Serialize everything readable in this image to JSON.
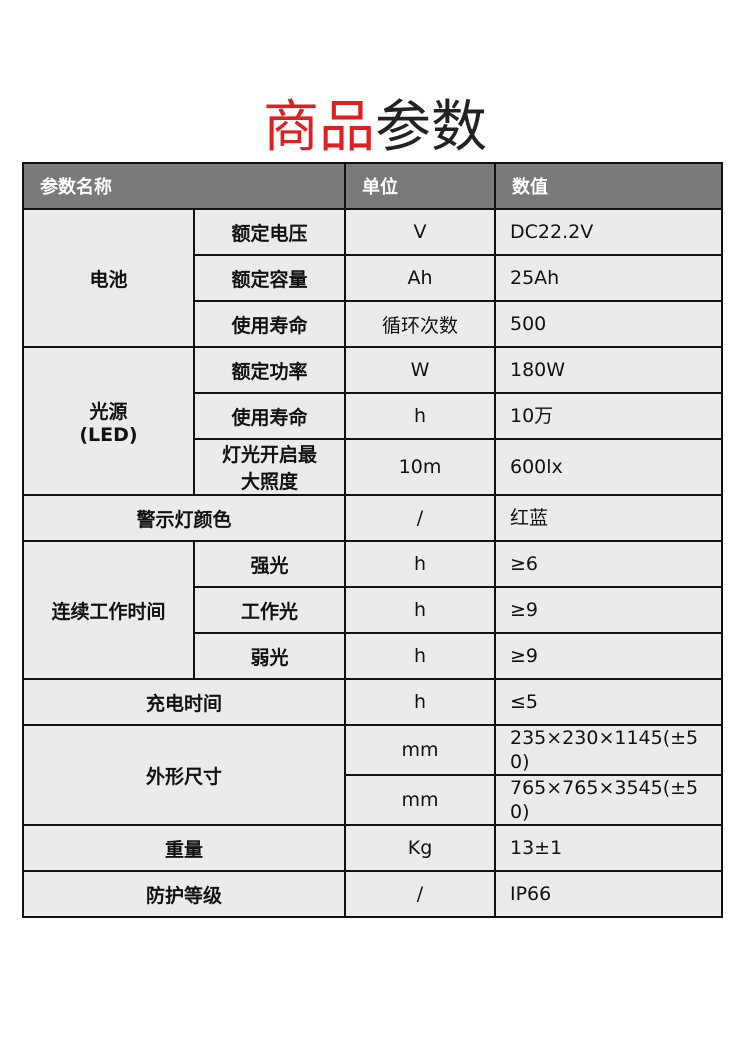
{
  "title": {
    "red": "商品",
    "dark": "参数"
  },
  "header": {
    "name": "参数名称",
    "unit": "单位",
    "value": "数值"
  },
  "battery": {
    "group": "电池",
    "rows": [
      {
        "name": "额定电压",
        "unit": "V",
        "value": "DC22.2V"
      },
      {
        "name": "额定容量",
        "unit": "Ah",
        "value": "25Ah"
      },
      {
        "name": "使用寿命",
        "unit": "循环次数",
        "value": "500"
      }
    ]
  },
  "light": {
    "group": "光源\n(LED)",
    "rows": [
      {
        "name": "额定功率",
        "unit": "W",
        "value": "180W"
      },
      {
        "name": "使用寿命",
        "unit": "h",
        "value": "10万"
      },
      {
        "name": "灯光开启最大照度",
        "unit": "10m",
        "value": "600lx"
      }
    ]
  },
  "warning": {
    "name": "警示灯颜色",
    "unit": "/",
    "value": "红蓝"
  },
  "work": {
    "group": "连续工作时间",
    "rows": [
      {
        "name": "强光",
        "unit": "h",
        "value": "≥6"
      },
      {
        "name": "工作光",
        "unit": "h",
        "value": "≥9"
      },
      {
        "name": "弱光",
        "unit": "h",
        "value": "≥9"
      }
    ]
  },
  "charge": {
    "name": "充电时间",
    "unit": "h",
    "value": "≤5"
  },
  "size": {
    "name": "外形尺寸",
    "rows": [
      {
        "unit": "mm",
        "value": "235×230×1145(±50)"
      },
      {
        "unit": "mm",
        "value": "765×765×3545(±50)"
      }
    ]
  },
  "weight": {
    "name": "重量",
    "unit": "Kg",
    "value": "13±1"
  },
  "protection": {
    "name": "防护等级",
    "unit": "/",
    "value": "IP66"
  }
}
